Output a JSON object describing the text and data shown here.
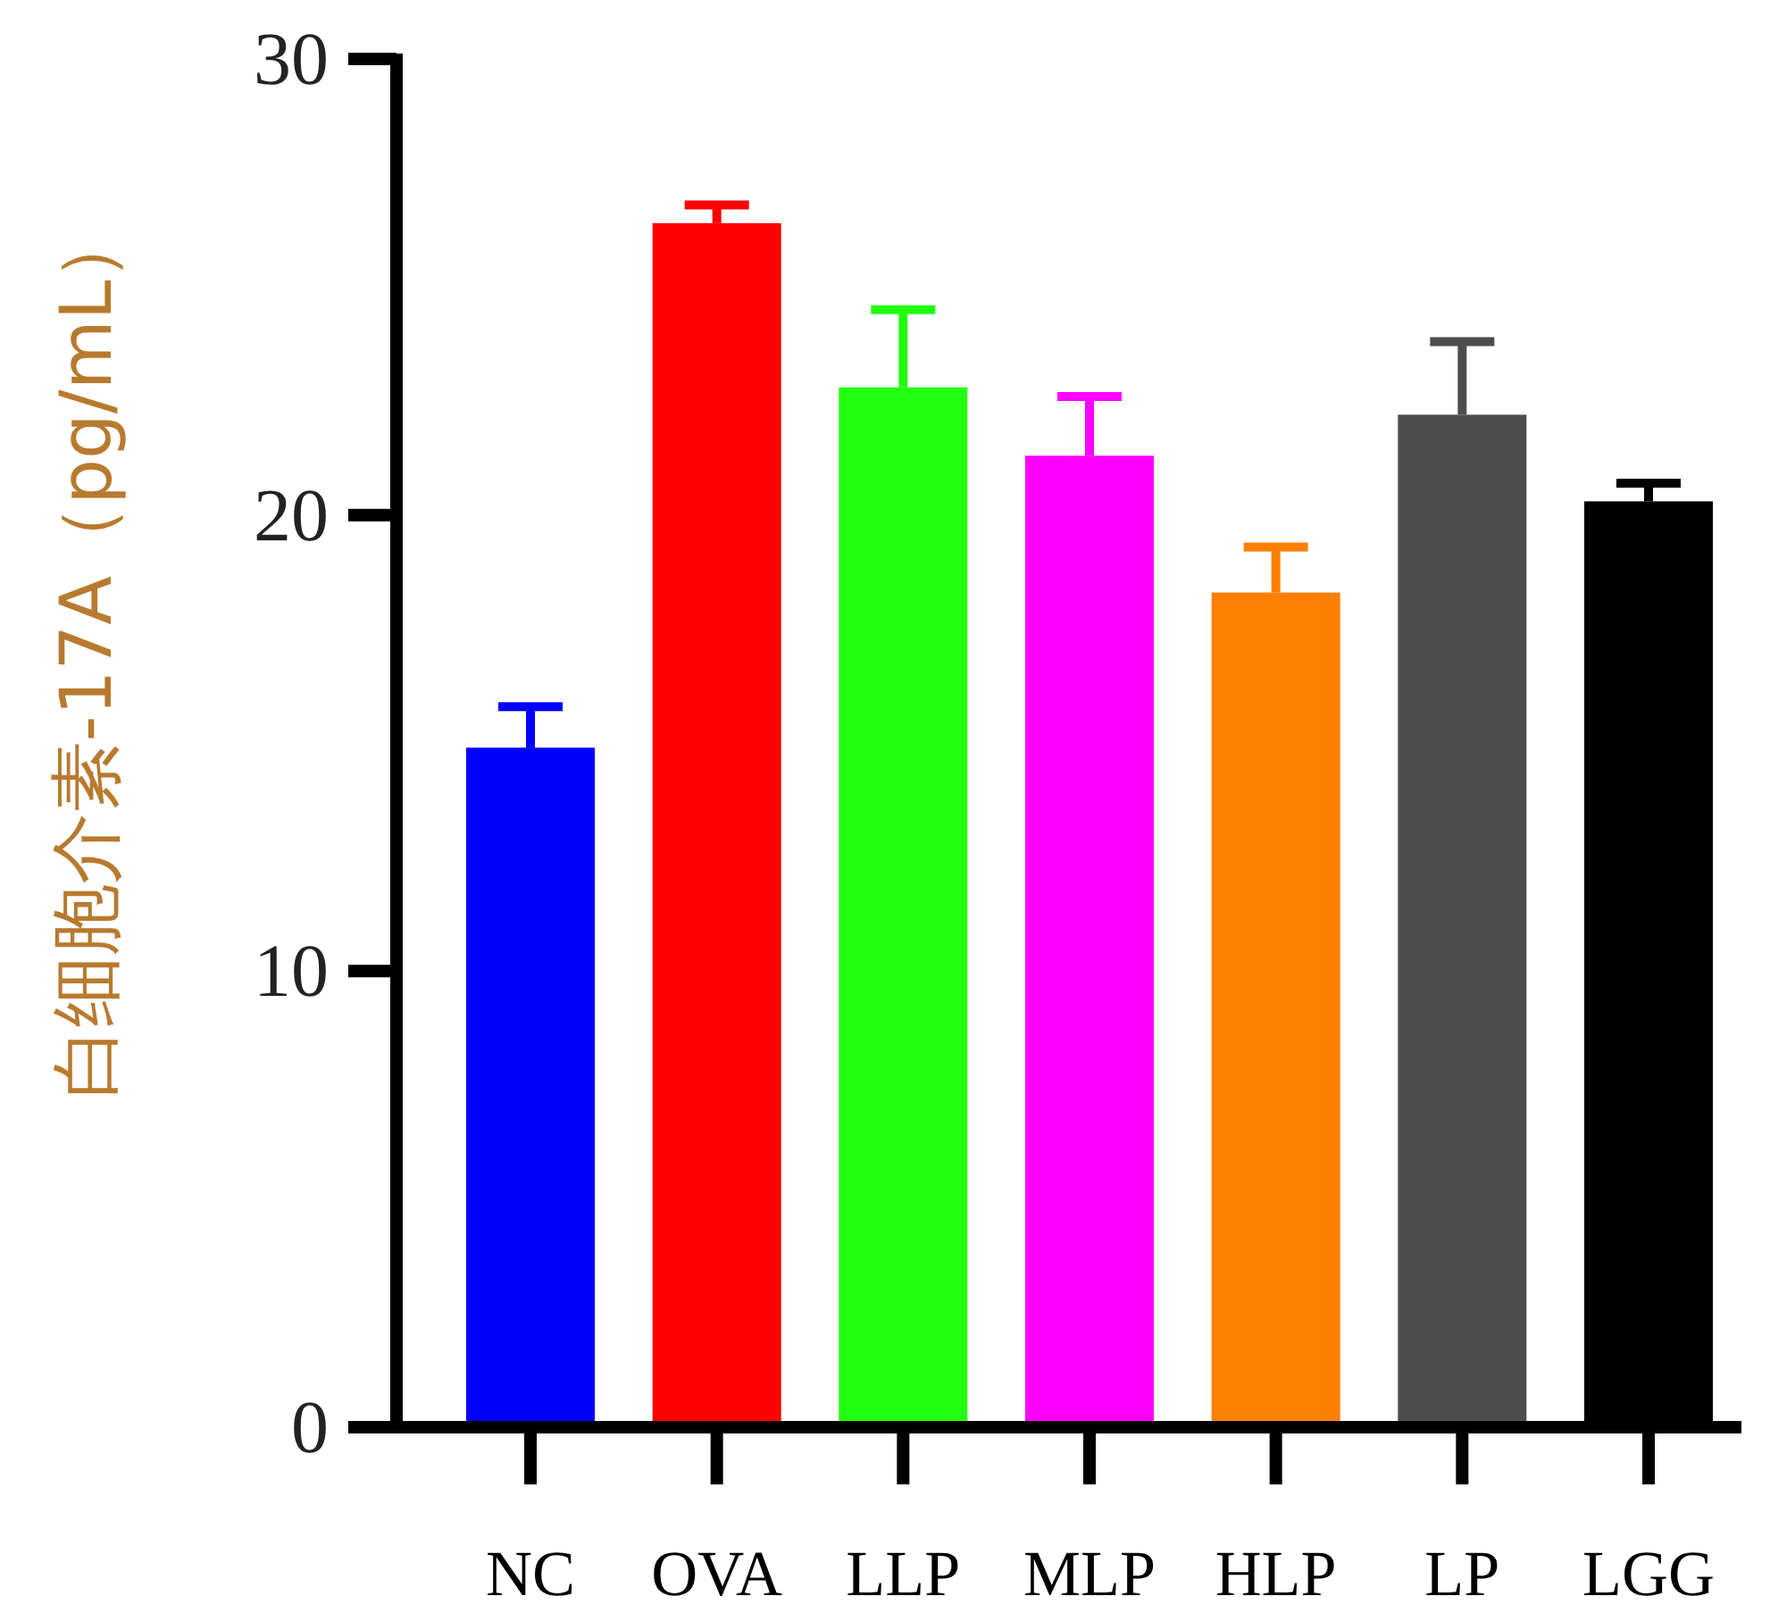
{
  "chart_data": {
    "type": "bar",
    "ylabel": "白细胞介素-17A（pg/mL）",
    "categories": [
      "NC",
      "OVA",
      "LLP",
      "MLP",
      "HLP",
      "LP",
      "LGG"
    ],
    "values": [
      14.9,
      26.4,
      22.8,
      21.3,
      18.3,
      22.2,
      20.3
    ],
    "colors": [
      "#0000ff",
      "#ff0000",
      "#22ff11",
      "#ff00ff",
      "#ff8000",
      "#4d4d4d",
      "#000000"
    ],
    "errors": [
      [
        14.9,
        15.8
      ],
      [
        26.4,
        26.8
      ],
      [
        22.8,
        24.5
      ],
      [
        21.3,
        22.6
      ],
      [
        18.3,
        19.3
      ],
      [
        22.2,
        23.8
      ],
      [
        20.3,
        20.7
      ]
    ],
    "ylim": [
      0,
      30
    ],
    "yticks": [
      0,
      10,
      20,
      30
    ]
  }
}
